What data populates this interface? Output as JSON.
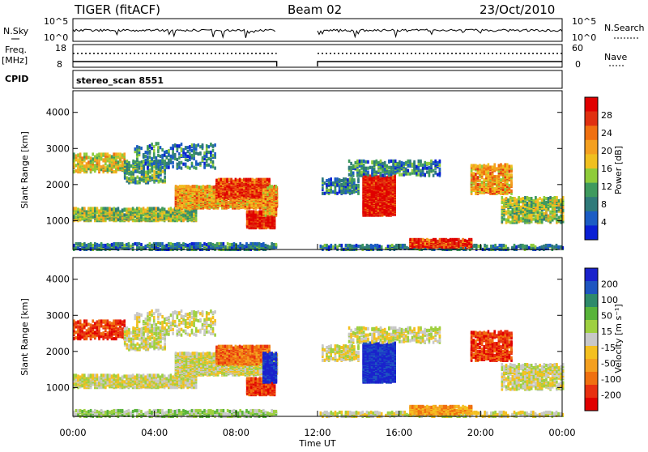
{
  "header": {
    "radar": "TIGER (fitACF)",
    "beam": "Beam 02",
    "date": "23/Oct/2010"
  },
  "top_panels": {
    "nsky_label": "N.Sky",
    "nsky_ticks": [
      "10^5",
      "10^0"
    ],
    "nsearch_label": "N.Search",
    "nsearch_ticks": [
      "10^5",
      "10^0"
    ],
    "freq_label": "Freq.",
    "freq_unit": "[MHz]",
    "freq_ticks": [
      "18",
      "8"
    ],
    "nave_label": "Nave",
    "nave_ticks": [
      "60",
      "0"
    ],
    "cpid_label": "CPID",
    "cpid_value": "stereo_scan 8551"
  },
  "chart_data": [
    {
      "type": "heatmap",
      "name": "power",
      "ylabel": "Slant Range [km]",
      "yticks": [
        "1000",
        "2000",
        "3000",
        "4000"
      ],
      "ylim": [
        200,
        4600
      ],
      "xticks": [
        "00:00",
        "04:00",
        "08:00",
        "12:00",
        "16:00",
        "20:00",
        "00:00"
      ],
      "xlim_hours": [
        0,
        24
      ],
      "data_gap_hours": [
        10,
        12
      ],
      "colorbar": {
        "label": "Power [dB]",
        "ticks": [
          "4",
          "8",
          "12",
          "16",
          "20",
          "24",
          "28"
        ],
        "colors": [
          "#0a1fd4",
          "#1b5cc4",
          "#2f7a7a",
          "#3f9a5e",
          "#8fcc3a",
          "#f0c020",
          "#f4a020",
          "#f07010",
          "#e03010",
          "#e00000"
        ]
      }
    },
    {
      "type": "heatmap",
      "name": "velocity",
      "ylabel": "Slant Range [km]",
      "yticks": [
        "1000",
        "2000",
        "3000",
        "4000"
      ],
      "ylim": [
        200,
        4600
      ],
      "xlabel": "Time UT",
      "xticks": [
        "00:00",
        "04:00",
        "08:00",
        "12:00",
        "16:00",
        "20:00",
        "00:00"
      ],
      "xlim_hours": [
        0,
        24
      ],
      "data_gap_hours": [
        10,
        12
      ],
      "colorbar": {
        "label": "Velocity [m s⁻¹]",
        "ticks": [
          "200",
          "100",
          "50",
          "15",
          "-15",
          "-50",
          "-100",
          "-200"
        ],
        "colors": [
          "#1a22cc",
          "#1e55c0",
          "#2e8a6a",
          "#58b43a",
          "#9ed040",
          "#c8c8c8",
          "#f4c020",
          "#f4a020",
          "#f07010",
          "#e83010",
          "#e00000"
        ]
      }
    }
  ]
}
